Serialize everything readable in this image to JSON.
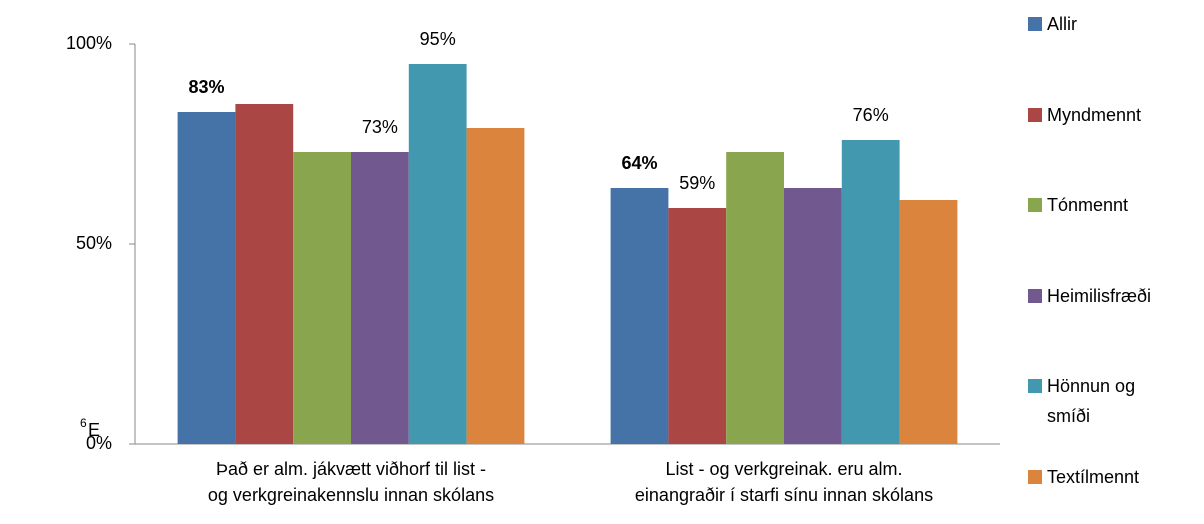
{
  "chart_data": {
    "type": "bar",
    "categories": [
      "Það er alm. jákvætt viðhorf til list - og verkgreinakennslu innan skólans",
      "List - og verkgreinak. eru alm. einangraðir í starfi sínu innan skólans"
    ],
    "series": [
      {
        "name": "Allir",
        "color": "#4572a7",
        "values": [
          83,
          64
        ],
        "value_labels": [
          "83%",
          "64%"
        ],
        "label_bold": true
      },
      {
        "name": "Myndmennt",
        "color": "#aa4643",
        "values": [
          85,
          59
        ],
        "value_labels": [
          null,
          "59%"
        ]
      },
      {
        "name": "Tónmennt",
        "color": "#89a54e",
        "values": [
          73,
          73
        ],
        "value_labels": [
          null,
          null
        ]
      },
      {
        "name": "Heimilisfræði",
        "color": "#71588f",
        "values": [
          73,
          64
        ],
        "value_labels": [
          "73%",
          null
        ]
      },
      {
        "name": "Hönnun og smíði",
        "color": "#4198af",
        "values": [
          95,
          76
        ],
        "value_labels": [
          "95%",
          "76%"
        ]
      },
      {
        "name": "Textílmennt",
        "color": "#db843d",
        "values": [
          79,
          61
        ],
        "value_labels": [
          null,
          null
        ]
      }
    ],
    "ylim": [
      0,
      100
    ],
    "yticks": [
      {
        "value": 0,
        "label": "0%"
      },
      {
        "value": 50,
        "label": "50%"
      },
      {
        "value": 100,
        "label": "100%"
      }
    ],
    "grid": false,
    "legend": "right",
    "footnote_mark": "6",
    "footnote_text": "E"
  }
}
